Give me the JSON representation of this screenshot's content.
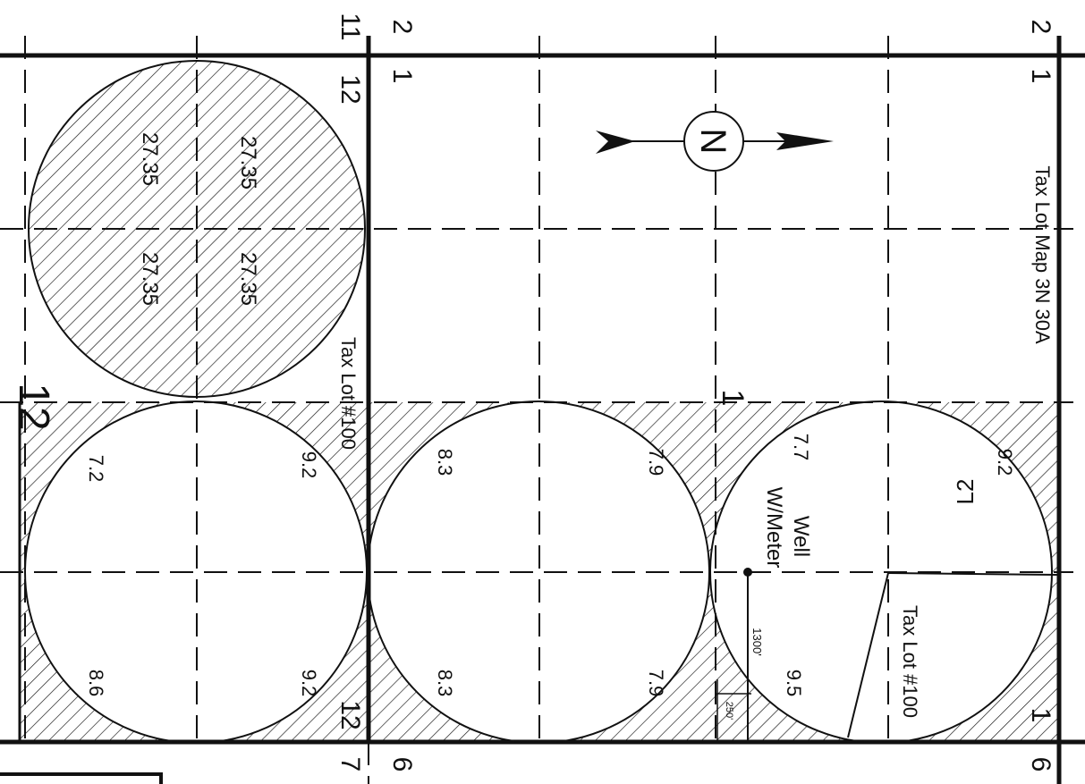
{
  "map": {
    "section_numbers": {
      "top_left_a": "11",
      "top_left_b": "12",
      "top_mid_a": "2",
      "top_mid_b": "1",
      "top_right_a": "2",
      "top_right_b": "1",
      "bottom_left_a": "12",
      "bottom_left_b": "7",
      "bottom_mid": "6",
      "bottom_right_a": "1",
      "bottom_right_b": "6",
      "left_edge": "12"
    },
    "north_arrow_letter": "N",
    "labels": {
      "tax_lot_map": "Tax Lot Map 3N 30A",
      "tax_lot_100_left": "Tax Lot #100",
      "tax_lot_100_right": "Tax Lot #100",
      "well": "Well",
      "well_meter": "W/Meter",
      "dist_1300": "1300'",
      "dist_250": "250'",
      "lot_l2": "L2",
      "mark_1": "1"
    },
    "acreage": {
      "big_circle": [
        "27.35",
        "27.35",
        "27.35",
        "27.35"
      ],
      "c1": [
        "9.2",
        "9.2",
        "7.2",
        "8.6"
      ],
      "c2": [
        "8.3",
        "8.3"
      ],
      "c3": [
        "7.9",
        "7.9"
      ],
      "c4": [
        "7.7",
        "9.2",
        "9.5"
      ]
    }
  }
}
